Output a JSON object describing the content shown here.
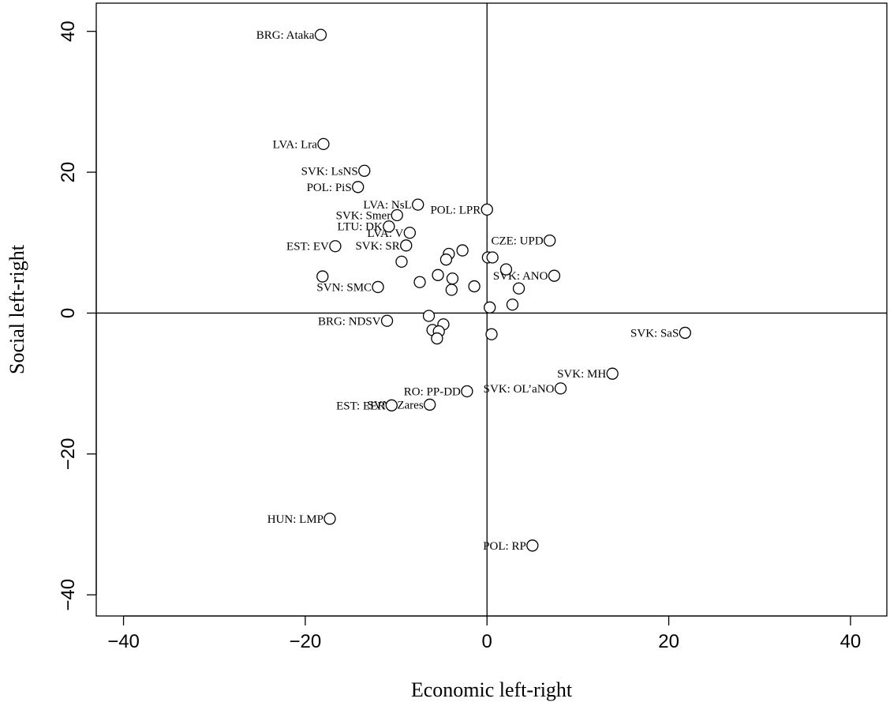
{
  "chart_data": {
    "type": "scatter",
    "xlabel": "Economic left-right",
    "ylabel": "Social left-right",
    "xlim": [
      -43,
      44
    ],
    "ylim": [
      -43,
      44
    ],
    "x_ticks": [
      -40,
      -20,
      0,
      20,
      40
    ],
    "y_ticks": [
      -40,
      -20,
      0,
      20,
      40
    ],
    "x_tick_labels": [
      "−40",
      "−20",
      "0",
      "20",
      "40"
    ],
    "y_tick_labels": [
      "−40",
      "−20",
      "0",
      "20",
      "40"
    ],
    "reference_lines": {
      "x": 0,
      "y": 0
    },
    "grid": false,
    "marker": "open-circle",
    "points": [
      {
        "x": -18.3,
        "y": 39.5,
        "label": "BRG: Ataka"
      },
      {
        "x": -18.0,
        "y": 24.0,
        "label": "LVA: Lra"
      },
      {
        "x": -13.5,
        "y": 20.2,
        "label": "SVK: LsNS"
      },
      {
        "x": -14.2,
        "y": 17.9,
        "label": "POL: PiS"
      },
      {
        "x": -7.6,
        "y": 15.4,
        "label": "LVA: NsL"
      },
      {
        "x": 0.0,
        "y": 14.7,
        "label": "POL: LPR"
      },
      {
        "x": -9.9,
        "y": 13.9,
        "label": "SVK: Smer"
      },
      {
        "x": -10.8,
        "y": 12.3,
        "label": "LTU: DK"
      },
      {
        "x": -8.5,
        "y": 11.4,
        "label": "LVA: V"
      },
      {
        "x": 6.9,
        "y": 10.3,
        "label": "CZE: UPD"
      },
      {
        "x": -16.7,
        "y": 9.5,
        "label": "EST: EV"
      },
      {
        "x": -8.9,
        "y": 9.6,
        "label": "SVK: SR"
      },
      {
        "x": 7.4,
        "y": 5.3,
        "label": "SVK: ANO"
      },
      {
        "x": -12.0,
        "y": 3.7,
        "label": "SVN: SMC"
      },
      {
        "x": -11.0,
        "y": -1.1,
        "label": "BRG: NDSV"
      },
      {
        "x": 21.8,
        "y": -2.8,
        "label": "SVK: SaS"
      },
      {
        "x": 13.8,
        "y": -8.6,
        "label": "SVK: MH"
      },
      {
        "x": -2.2,
        "y": -11.1,
        "label": "RO: PP-DD"
      },
      {
        "x": 8.1,
        "y": -10.7,
        "label": "SVK: OL’aNO"
      },
      {
        "x": -6.3,
        "y": -13.0,
        "label": "SVN: Zares"
      },
      {
        "x": -10.5,
        "y": -13.1,
        "label": "EST: EER"
      },
      {
        "x": -17.3,
        "y": -29.2,
        "label": "HUN: LMP"
      },
      {
        "x": 5.0,
        "y": -33.0,
        "label": "POL: RP"
      },
      {
        "x": -4.2,
        "y": 8.4,
        "label": ""
      },
      {
        "x": -4.5,
        "y": 7.6,
        "label": ""
      },
      {
        "x": -2.7,
        "y": 8.9,
        "label": ""
      },
      {
        "x": 0.1,
        "y": 7.9,
        "label": ""
      },
      {
        "x": 0.6,
        "y": 7.9,
        "label": ""
      },
      {
        "x": -9.4,
        "y": 7.3,
        "label": ""
      },
      {
        "x": 2.1,
        "y": 6.2,
        "label": ""
      },
      {
        "x": -18.1,
        "y": 5.2,
        "label": ""
      },
      {
        "x": -5.4,
        "y": 5.4,
        "label": ""
      },
      {
        "x": -3.8,
        "y": 4.9,
        "label": ""
      },
      {
        "x": -7.4,
        "y": 4.4,
        "label": ""
      },
      {
        "x": -1.4,
        "y": 3.8,
        "label": ""
      },
      {
        "x": -3.9,
        "y": 3.3,
        "label": ""
      },
      {
        "x": 3.5,
        "y": 3.5,
        "label": ""
      },
      {
        "x": 2.8,
        "y": 1.2,
        "label": ""
      },
      {
        "x": 0.3,
        "y": 0.8,
        "label": ""
      },
      {
        "x": -6.4,
        "y": -0.4,
        "label": ""
      },
      {
        "x": -4.8,
        "y": -1.6,
        "label": ""
      },
      {
        "x": -6.0,
        "y": -2.4,
        "label": ""
      },
      {
        "x": -5.3,
        "y": -2.6,
        "label": ""
      },
      {
        "x": 0.5,
        "y": -3.0,
        "label": ""
      },
      {
        "x": -5.5,
        "y": -3.6,
        "label": ""
      }
    ]
  }
}
